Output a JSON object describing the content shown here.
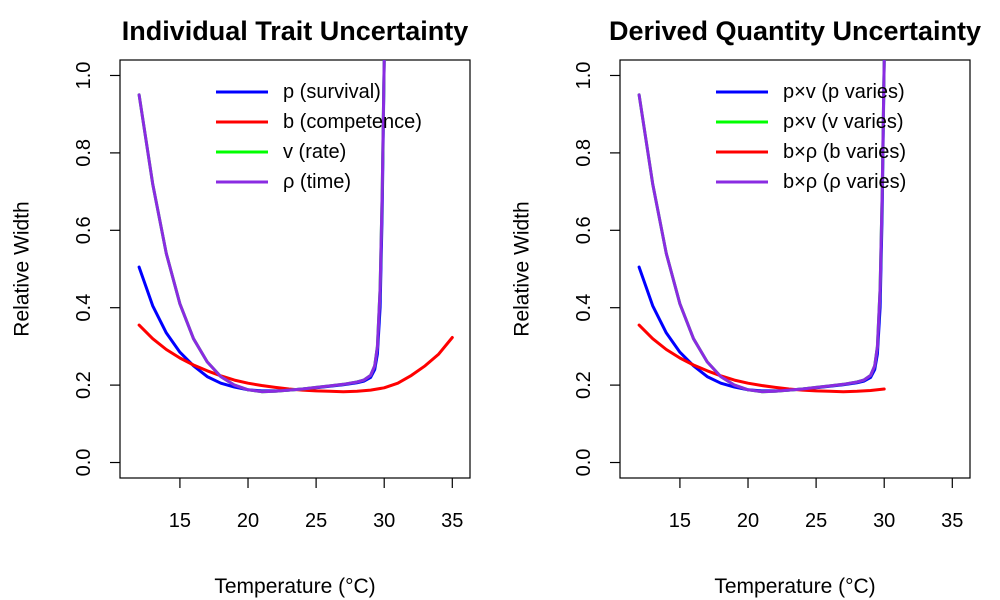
{
  "chart_data": [
    {
      "type": "line",
      "title": "Individual Trait Uncertainty",
      "xlabel": "Temperature (°C)",
      "ylabel": "Relative Width",
      "xlim": [
        10.6,
        36.3
      ],
      "ylim": [
        -0.04,
        1.04
      ],
      "xticks": [
        15,
        20,
        25,
        30,
        35
      ],
      "yticks": [
        0.0,
        0.2,
        0.4,
        0.6,
        0.8,
        1.0
      ],
      "xtick_labels": [
        "15",
        "20",
        "25",
        "30",
        "35"
      ],
      "ytick_labels": [
        "0.0",
        "0.2",
        "0.4",
        "0.6",
        "0.8",
        "1.0"
      ],
      "legend_position": "top-right",
      "series": [
        {
          "name": "p (survival)",
          "color": "#0000ff",
          "x": [
            12,
            13,
            14,
            15,
            16,
            17,
            18,
            19,
            20,
            21,
            22,
            23,
            24,
            25,
            26,
            27,
            28,
            28.5,
            29,
            29.3,
            29.5,
            29.7,
            29.85,
            30
          ],
          "y": [
            0.505,
            0.405,
            0.335,
            0.285,
            0.25,
            0.222,
            0.205,
            0.195,
            0.188,
            0.185,
            0.185,
            0.187,
            0.19,
            0.193,
            0.197,
            0.201,
            0.206,
            0.21,
            0.22,
            0.24,
            0.28,
            0.4,
            0.65,
            1.04
          ]
        },
        {
          "name": "b (competence)",
          "color": "#ff0000",
          "x": [
            12,
            13,
            14,
            15,
            16,
            17,
            18,
            19,
            20,
            21,
            22,
            23,
            24,
            25,
            26,
            27,
            28,
            29,
            30,
            31,
            32,
            33,
            34,
            35
          ],
          "y": [
            0.355,
            0.32,
            0.292,
            0.27,
            0.252,
            0.237,
            0.224,
            0.213,
            0.205,
            0.199,
            0.194,
            0.19,
            0.187,
            0.185,
            0.184,
            0.183,
            0.184,
            0.187,
            0.193,
            0.205,
            0.225,
            0.25,
            0.28,
            0.323
          ]
        },
        {
          "name": "v (rate)",
          "color": "#00ff00",
          "x": [
            12,
            13,
            14,
            15,
            16,
            17,
            18,
            19,
            20,
            21,
            22,
            23,
            24,
            25,
            26,
            27,
            28,
            28.5,
            29,
            29.3,
            29.5,
            29.7,
            29.85,
            30
          ],
          "y": [
            0.95,
            0.72,
            0.54,
            0.41,
            0.32,
            0.26,
            0.222,
            0.2,
            0.188,
            0.183,
            0.184,
            0.187,
            0.19,
            0.194,
            0.198,
            0.202,
            0.208,
            0.213,
            0.225,
            0.25,
            0.3,
            0.45,
            0.7,
            1.04
          ]
        },
        {
          "name": "ρ (time)",
          "color": "#8a2be2",
          "x": [
            12,
            13,
            14,
            15,
            16,
            17,
            18,
            19,
            20,
            21,
            22,
            23,
            24,
            25,
            26,
            27,
            28,
            28.5,
            29,
            29.3,
            29.5,
            29.7,
            29.85,
            30
          ],
          "y": [
            0.95,
            0.72,
            0.54,
            0.41,
            0.32,
            0.26,
            0.222,
            0.2,
            0.188,
            0.183,
            0.184,
            0.187,
            0.19,
            0.194,
            0.198,
            0.202,
            0.208,
            0.213,
            0.225,
            0.25,
            0.3,
            0.45,
            0.7,
            1.04
          ]
        }
      ]
    },
    {
      "type": "line",
      "title": "Derived Quantity Uncertainty",
      "xlabel": "Temperature (°C)",
      "ylabel": "Relative Width",
      "xlim": [
        10.6,
        36.3
      ],
      "ylim": [
        -0.04,
        1.04
      ],
      "xticks": [
        15,
        20,
        25,
        30,
        35
      ],
      "yticks": [
        0.0,
        0.2,
        0.4,
        0.6,
        0.8,
        1.0
      ],
      "xtick_labels": [
        "15",
        "20",
        "25",
        "30",
        "35"
      ],
      "ytick_labels": [
        "0.0",
        "0.2",
        "0.4",
        "0.6",
        "0.8",
        "1.0"
      ],
      "legend_position": "top-right",
      "series": [
        {
          "name": "p×v (p varies)",
          "color": "#0000ff",
          "x": [
            12,
            13,
            14,
            15,
            16,
            17,
            18,
            19,
            20,
            21,
            22,
            23,
            24,
            25,
            26,
            27,
            28,
            28.5,
            29,
            29.3,
            29.5,
            29.7,
            29.85,
            30
          ],
          "y": [
            0.505,
            0.405,
            0.335,
            0.285,
            0.25,
            0.222,
            0.205,
            0.195,
            0.188,
            0.185,
            0.185,
            0.187,
            0.19,
            0.193,
            0.197,
            0.201,
            0.206,
            0.21,
            0.22,
            0.24,
            0.28,
            0.4,
            0.65,
            1.04
          ]
        },
        {
          "name": "p×v (v varies)",
          "color": "#00ff00",
          "x": [
            12,
            13,
            14,
            15,
            16,
            17,
            18,
            19,
            20,
            21,
            22,
            23,
            24,
            25,
            26,
            27,
            28,
            28.5,
            29,
            29.3,
            29.5,
            29.7,
            29.85,
            30
          ],
          "y": [
            0.95,
            0.72,
            0.54,
            0.41,
            0.32,
            0.26,
            0.222,
            0.2,
            0.188,
            0.183,
            0.184,
            0.187,
            0.19,
            0.194,
            0.198,
            0.202,
            0.208,
            0.213,
            0.225,
            0.25,
            0.3,
            0.45,
            0.7,
            1.04
          ]
        },
        {
          "name": "b×ρ (b varies)",
          "color": "#ff0000",
          "x": [
            12,
            13,
            14,
            15,
            16,
            17,
            18,
            19,
            20,
            21,
            22,
            23,
            24,
            25,
            26,
            27,
            28,
            29,
            30
          ],
          "y": [
            0.355,
            0.32,
            0.292,
            0.27,
            0.252,
            0.237,
            0.224,
            0.213,
            0.205,
            0.199,
            0.194,
            0.19,
            0.187,
            0.185,
            0.184,
            0.183,
            0.184,
            0.186,
            0.19
          ]
        },
        {
          "name": "b×ρ (ρ varies)",
          "color": "#8a2be2",
          "x": [
            12,
            13,
            14,
            15,
            16,
            17,
            18,
            19,
            20,
            21,
            22,
            23,
            24,
            25,
            26,
            27,
            28,
            28.5,
            29,
            29.3,
            29.5,
            29.7,
            29.85,
            30
          ],
          "y": [
            0.95,
            0.72,
            0.54,
            0.41,
            0.32,
            0.26,
            0.222,
            0.2,
            0.188,
            0.183,
            0.184,
            0.187,
            0.19,
            0.194,
            0.198,
            0.202,
            0.208,
            0.213,
            0.225,
            0.25,
            0.3,
            0.45,
            0.7,
            1.04
          ]
        }
      ]
    }
  ]
}
